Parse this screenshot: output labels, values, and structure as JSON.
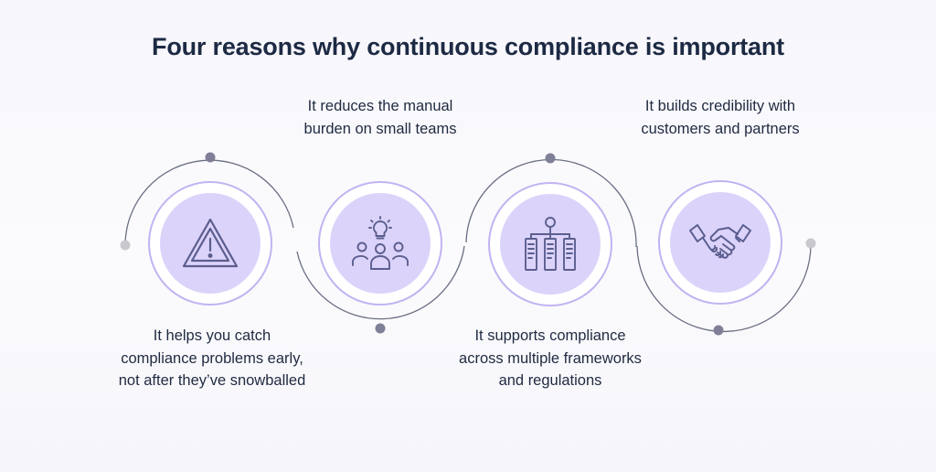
{
  "title": "Four reasons why continuous compliance is important",
  "colors": {
    "title": "#1d2a44",
    "text": "#1f2a40",
    "ring_border": "#c2b3f2",
    "disc_fill": "#dcd3fb",
    "icon_stroke": "#5b5e8e",
    "connector": "#6a6f82",
    "dot": "#7f7f97",
    "end_dot": "#c8c8ce"
  },
  "reasons": [
    {
      "text": "It helps you catch compliance problems early, not after they’ve snowballed",
      "icon": "warning-triangle-icon",
      "label_position": "below"
    },
    {
      "text": "It reduces the manual burden on small teams",
      "icon": "team-idea-icon",
      "label_position": "above"
    },
    {
      "text": "It supports compliance across multiple frameworks and regulations",
      "icon": "framework-hierarchy-icon",
      "label_position": "below"
    },
    {
      "text": "It builds credibility with customers and partners",
      "icon": "handshake-icon",
      "label_position": "above"
    }
  ]
}
